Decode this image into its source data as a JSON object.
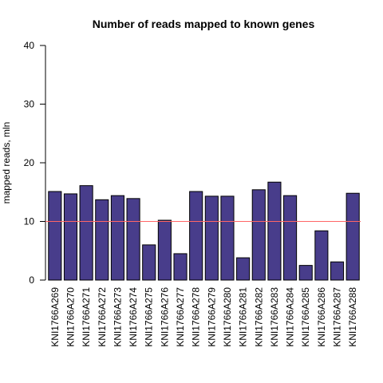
{
  "chart_data": {
    "type": "bar",
    "title": "Number of reads mapped to known genes",
    "xlabel": "",
    "ylabel": "mapped reads, mln",
    "ylim": [
      0,
      40
    ],
    "yticks": [
      0,
      10,
      20,
      30,
      40
    ],
    "grid": false,
    "categories": [
      "KNI1766A269",
      "KNI1766A270",
      "KNI1766A271",
      "KNI1766A272",
      "KNI1766A273",
      "KNI1766A274",
      "KNI1766A275",
      "KNI1766A276",
      "KNI1766A277",
      "KNI1766A278",
      "KNI1766A279",
      "KNI1766A280",
      "KNI1766A281",
      "KNI1766A282",
      "KNI1766A283",
      "KNI1766A284",
      "KNI1766A285",
      "KNI1766A286",
      "KNI1766A287",
      "KNI1766A288"
    ],
    "values": [
      15.1,
      14.7,
      16.1,
      13.7,
      14.4,
      13.9,
      6.0,
      10.2,
      4.5,
      15.1,
      14.3,
      14.3,
      3.8,
      15.4,
      16.7,
      14.4,
      2.5,
      8.4,
      3.1,
      14.8
    ],
    "reference_line": {
      "y": 10,
      "color": "#ff6666"
    },
    "bar_color": "#483d8b",
    "bar_border_color": "#000000"
  }
}
